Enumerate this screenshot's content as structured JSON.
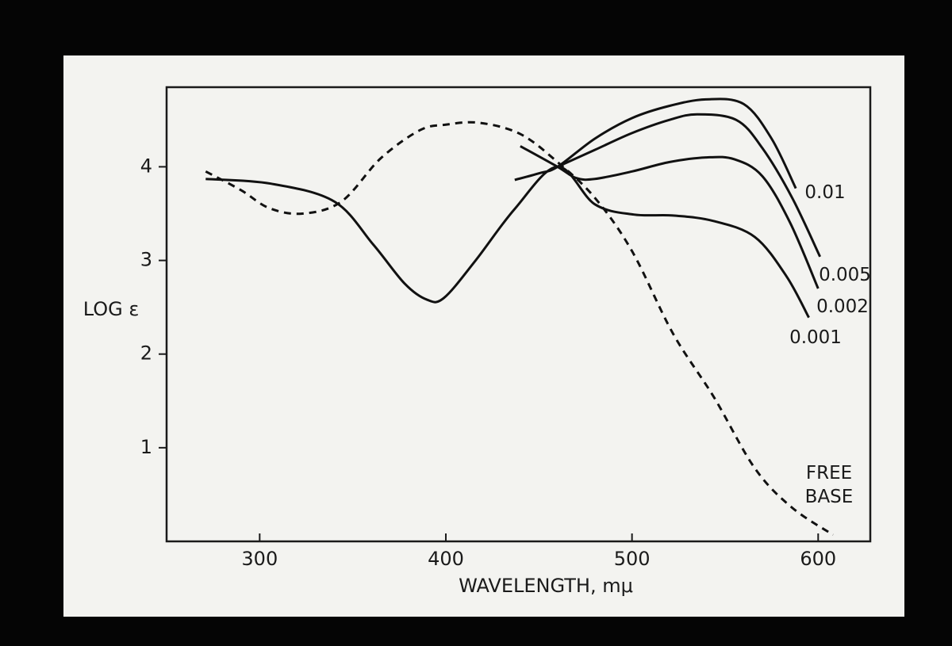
{
  "chart_data": {
    "type": "line",
    "x_label": "WAVELENGTH, mμ",
    "y_label": "LOG ε",
    "xlim": [
      250,
      628
    ],
    "ylim": [
      0,
      4.85
    ],
    "xticks": [
      300,
      400,
      500,
      600
    ],
    "yticks": [
      1,
      2,
      3,
      4
    ],
    "series": [
      {
        "name": "0.01",
        "color": "#111111",
        "line_style": "solid",
        "x": [
          437,
          450,
          460,
          480,
          500,
          520,
          540,
          560,
          575,
          588
        ],
        "values": [
          3.86,
          3.93,
          4.0,
          4.3,
          4.52,
          4.65,
          4.72,
          4.67,
          4.3,
          3.77
        ]
      },
      {
        "name": "0.005",
        "color": "#111111",
        "line_style": "solid",
        "x": [
          460,
          480,
          500,
          520,
          535,
          556,
          570,
          586,
          601
        ],
        "values": [
          4.0,
          4.18,
          4.36,
          4.5,
          4.56,
          4.5,
          4.2,
          3.67,
          3.04
        ]
      },
      {
        "name": "0.002",
        "color": "#111111",
        "line_style": "solid",
        "x": [
          440,
          460,
          470,
          480,
          500,
          520,
          540,
          555,
          570,
          585,
          600
        ],
        "values": [
          4.22,
          4.0,
          3.88,
          3.87,
          3.95,
          4.05,
          4.1,
          4.08,
          3.9,
          3.4,
          2.7
        ]
      },
      {
        "name": "0.001",
        "color": "#111111",
        "line_style": "solid",
        "x": [
          271,
          306,
          340,
          361,
          378,
          390,
          399,
          416,
          437,
          460,
          480,
          501,
          522,
          544,
          566,
          583,
          595
        ],
        "values": [
          3.87,
          3.82,
          3.63,
          3.17,
          2.75,
          2.58,
          2.6,
          3.0,
          3.55,
          4.0,
          3.6,
          3.49,
          3.48,
          3.42,
          3.25,
          2.83,
          2.39
        ]
      },
      {
        "name": "FREE BASE",
        "color": "#111111",
        "line_style": "dashed",
        "x": [
          271,
          290,
          305,
          323,
          344,
          365,
          386,
          400,
          418,
          440,
          460,
          480,
          500,
          522,
          544,
          566,
          586,
          608
        ],
        "values": [
          3.95,
          3.75,
          3.56,
          3.5,
          3.63,
          4.09,
          4.39,
          4.45,
          4.47,
          4.35,
          4.05,
          3.67,
          3.1,
          2.22,
          1.54,
          0.78,
          0.36,
          0.07
        ]
      }
    ]
  }
}
